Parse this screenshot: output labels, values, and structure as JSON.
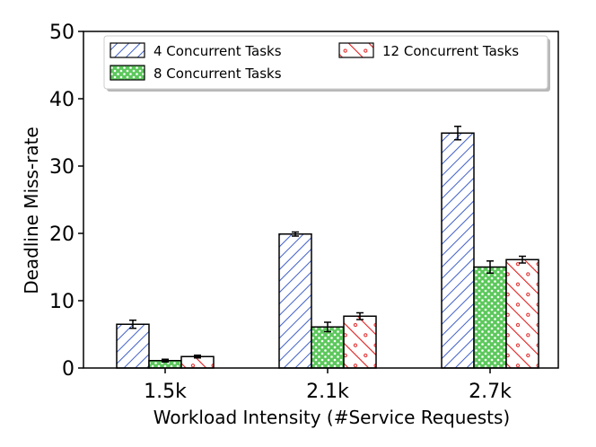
{
  "chart_data": {
    "type": "bar",
    "title": "",
    "xlabel": "Workload Intensity (#Service Requests)",
    "ylabel": "Deadline Miss-rate",
    "categories": [
      "1.5k",
      "2.1k",
      "2.7k"
    ],
    "ylim": [
      0,
      50
    ],
    "yticks": [
      "0",
      "10",
      "20",
      "30",
      "40",
      "50"
    ],
    "grid": false,
    "legend_position": "top",
    "series": [
      {
        "name": "4 Concurrent Tasks",
        "values": [
          6.5,
          19.9,
          34.9
        ],
        "errors": [
          0.6,
          0.3,
          1.0
        ],
        "color": "#4060c8",
        "pattern": "hatch-diagonal"
      },
      {
        "name": "8 Concurrent Tasks",
        "values": [
          1.1,
          6.1,
          15.0
        ],
        "errors": [
          0.2,
          0.7,
          0.9
        ],
        "color": "#30b030",
        "pattern": "dots"
      },
      {
        "name": "12 Concurrent Tasks",
        "values": [
          1.7,
          7.7,
          16.1
        ],
        "errors": [
          0.2,
          0.5,
          0.5
        ],
        "color": "#e02020",
        "pattern": "hatch-backslash"
      }
    ]
  }
}
